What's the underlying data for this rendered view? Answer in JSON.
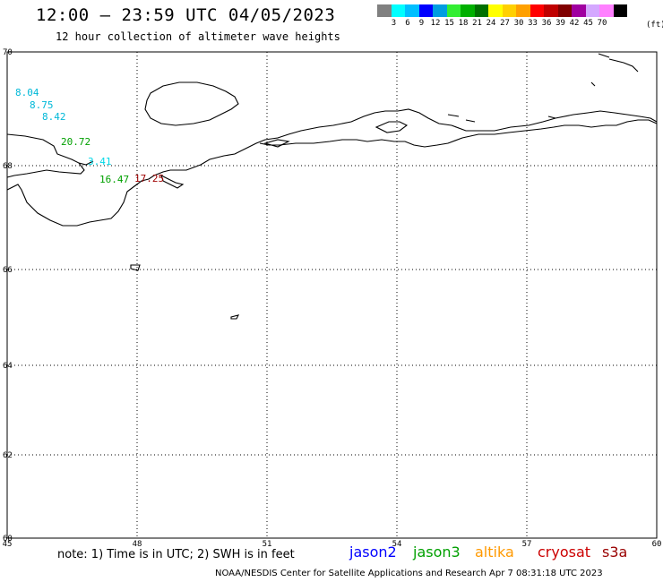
{
  "header": {
    "title": "12:00 – 23:59 UTC 04/05/2023",
    "subtitle": "12 hour collection of altimeter wave heights"
  },
  "color_scale": {
    "unit": "(ft)",
    "colors": [
      "#808080",
      "#00ffff",
      "#00bfff",
      "#0000ff",
      "#009de0",
      "#33ee33",
      "#00b000",
      "#007000",
      "#ffff00",
      "#ffd000",
      "#ffa000",
      "#ff0000",
      "#c00000",
      "#800000",
      "#a000a0",
      "#d4a8ff",
      "#ff80ff",
      "#000000"
    ],
    "labels": [
      "3",
      "6",
      "9",
      "12",
      "15",
      "18",
      "21",
      "24",
      "27",
      "30",
      "33",
      "36",
      "39",
      "42",
      "45",
      "70"
    ]
  },
  "axes": {
    "lon_ticks": [
      "45",
      "48",
      "51",
      "54",
      "57",
      "60"
    ],
    "lat_ticks": [
      "70",
      "68",
      "66",
      "64",
      "62",
      "60"
    ]
  },
  "observations": [
    {
      "value": "8.04",
      "color": "#00b8d8"
    },
    {
      "value": "8.75",
      "color": "#00b8d8"
    },
    {
      "value": "8.42",
      "color": "#00b8d8"
    },
    {
      "value": "20.72",
      "color": "#00a000"
    },
    {
      "value": "3.41",
      "color": "#00d8e8"
    },
    {
      "value": "16.47",
      "color": "#00a000"
    },
    {
      "value": "17.25",
      "color": "#a00000"
    }
  ],
  "footer": {
    "note": "note: 1) Time is in UTC; 2) SWH is in feet",
    "credit": "NOAA/NESDIS Center for Satellite Applications and Research    Apr  7 08:31:18 UTC 2023"
  },
  "satellites": [
    {
      "name": "jason2",
      "color": "#0000ff"
    },
    {
      "name": "jason3",
      "color": "#00a000"
    },
    {
      "name": "altika",
      "color": "#ff9900"
    },
    {
      "name": "cryosat",
      "color": "#cc0000"
    },
    {
      "name": "s3a",
      "color": "#990000"
    }
  ]
}
